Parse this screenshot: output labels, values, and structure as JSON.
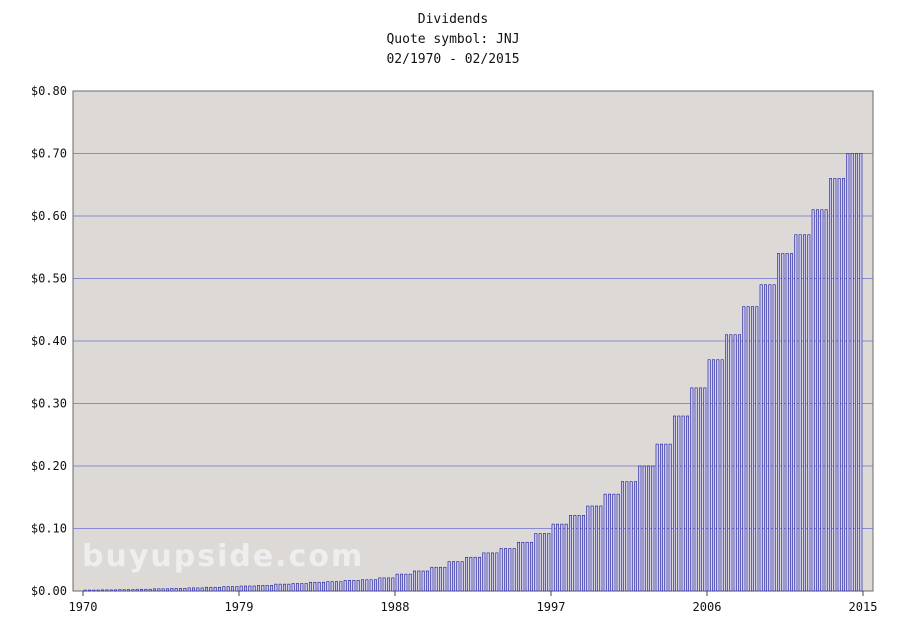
{
  "chart_data": {
    "type": "bar",
    "title": "Dividends",
    "subtitle": "Quote symbol: JNJ",
    "date_range": "02/1970 - 02/2015",
    "watermark": "buyupside.com",
    "ylim": [
      0,
      0.8
    ],
    "yticks": [
      "$0.00",
      "$0.10",
      "$0.20",
      "$0.30",
      "$0.40",
      "$0.50",
      "$0.60",
      "$0.70",
      "$0.80"
    ],
    "xticks": [
      "1970",
      "1979",
      "1988",
      "1997",
      "2006",
      "2015"
    ],
    "grid": true,
    "colors": {
      "bar": "#1a1a9e",
      "bar_fill": "#c9c6ee",
      "plot_bg": "#dcd9d7",
      "grid": "#6f6fd0"
    },
    "series": [
      {
        "x": [
          1970,
          1971,
          1972,
          1973,
          1974,
          1975,
          1976,
          1977,
          1978,
          1979,
          1980,
          1981,
          1982,
          1983,
          1984,
          1985,
          1986,
          1987,
          1988,
          1989,
          1990,
          1991,
          1992,
          1993,
          1994,
          1995,
          1996,
          1997,
          1998,
          1999,
          2000,
          2001,
          2002,
          2003,
          2004,
          2005,
          2006,
          2007,
          2008,
          2009,
          2010,
          2011,
          2012,
          2013,
          2014
        ],
        "values": [
          0.0015,
          0.0018,
          0.0022,
          0.0028,
          0.0035,
          0.0042,
          0.005,
          0.006,
          0.007,
          0.008,
          0.009,
          0.011,
          0.012,
          0.014,
          0.015,
          0.017,
          0.018,
          0.021,
          0.027,
          0.032,
          0.038,
          0.047,
          0.054,
          0.061,
          0.068,
          0.078,
          0.092,
          0.107,
          0.121,
          0.136,
          0.155,
          0.175,
          0.2,
          0.235,
          0.28,
          0.325,
          0.37,
          0.41,
          0.455,
          0.49,
          0.54,
          0.57,
          0.61,
          0.66,
          0.7
        ]
      }
    ]
  }
}
